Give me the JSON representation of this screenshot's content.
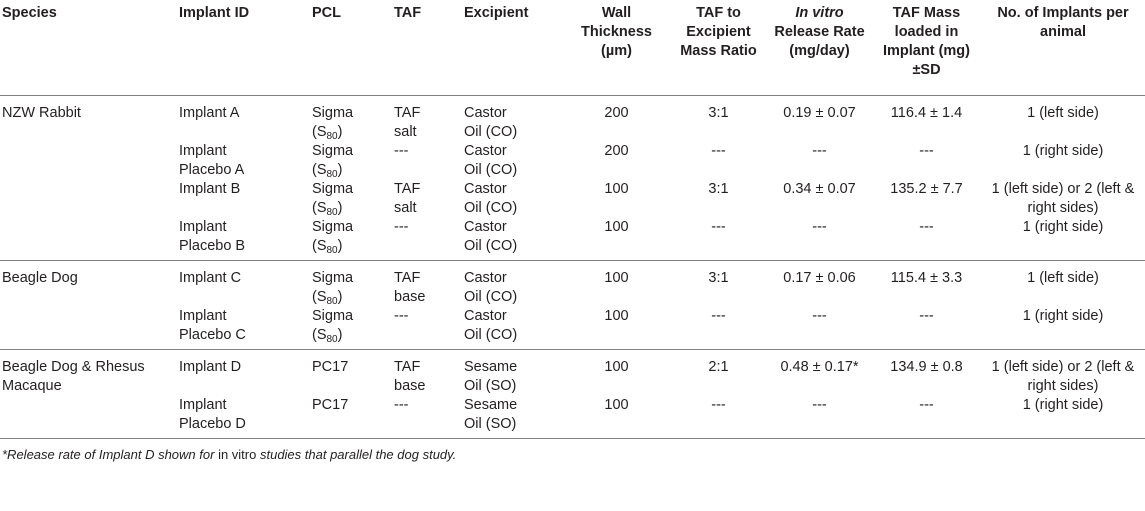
{
  "headers": {
    "species": "Species",
    "implant_id": "Implant ID",
    "pcl": "PCL",
    "taf": "TAF",
    "excipient": "Excipient",
    "wall_thickness": "Wall Thickness (µm)",
    "ratio": "TAF to Excipient Mass Ratio",
    "release_prefix": "In vitro",
    "release_rest": "Release Rate (mg/day)",
    "mass": "TAF Mass loaded in Implant (mg)±SD",
    "num": "No. of Implants per animal"
  },
  "rows": [
    {
      "species": "NZW Rabbit",
      "implant_id": "Implant A",
      "pcl_main": "Sigma (S",
      "pcl_sub": "80",
      "pcl_end": ")",
      "taf": "TAF salt",
      "excipient": "Castor Oil (CO)",
      "wall": "200",
      "ratio": "3:1",
      "release": "0.19 ± 0.07",
      "mass": "116.4 ± 1.4",
      "num": "1 (left side)"
    },
    {
      "species": "",
      "implant_id": "Implant Placebo A",
      "pcl_main": "Sigma (S",
      "pcl_sub": "80",
      "pcl_end": ")",
      "taf": "---",
      "excipient": "Castor Oil (CO)",
      "wall": "200",
      "ratio": "---",
      "release": "---",
      "mass": "---",
      "num": "1 (right side)"
    },
    {
      "species": "",
      "implant_id": "Implant B",
      "pcl_main": "Sigma (S",
      "pcl_sub": "80",
      "pcl_end": ")",
      "taf": "TAF salt",
      "excipient": "Castor Oil (CO)",
      "wall": "100",
      "ratio": "3:1",
      "release": "0.34 ± 0.07",
      "mass": "135.2 ± 7.7",
      "num": "1 (left side) or 2 (left & right sides)"
    },
    {
      "species": "",
      "implant_id": "Implant Placebo B",
      "pcl_main": "Sigma (S",
      "pcl_sub": "80",
      "pcl_end": ")",
      "taf": "---",
      "excipient": "Castor Oil (CO)",
      "wall": "100",
      "ratio": "---",
      "release": "---",
      "mass": "---",
      "num": "1 (right side)"
    },
    {
      "species": "Beagle Dog",
      "implant_id": "Implant C",
      "pcl_main": "Sigma (S",
      "pcl_sub": "80",
      "pcl_end": ")",
      "taf": "TAF base",
      "excipient": "Castor Oil (CO)",
      "wall": "100",
      "ratio": "3:1",
      "release": "0.17 ± 0.06",
      "mass": "115.4 ± 3.3",
      "num": "1 (left side)"
    },
    {
      "species": "",
      "implant_id": "Implant Placebo C",
      "pcl_main": "Sigma (S",
      "pcl_sub": "80",
      "pcl_end": ")",
      "taf": "---",
      "excipient": "Castor Oil (CO)",
      "wall": "100",
      "ratio": "---",
      "release": "---",
      "mass": "---",
      "num": "1 (right side)"
    },
    {
      "species": "Beagle Dog & Rhesus Macaque",
      "implant_id": "Implant D",
      "pcl_main": "PC17",
      "pcl_sub": "",
      "pcl_end": "",
      "taf": "TAF base",
      "excipient": "Sesame Oil (SO)",
      "wall": "100",
      "ratio": "2:1",
      "release": "0.48 ± 0.17*",
      "mass": "134.9 ± 0.8",
      "num": "1 (left side) or 2 (left & right sides)"
    },
    {
      "species": "",
      "implant_id": "Implant Placebo D",
      "pcl_main": "PC17",
      "pcl_sub": "",
      "pcl_end": "",
      "taf": "---",
      "excipient": "Sesame Oil (SO)",
      "wall": "100",
      "ratio": "---",
      "release": "---",
      "mass": "---",
      "num": "1 (right side)"
    }
  ],
  "footnote": {
    "part1": "*Release rate of Implant D shown for ",
    "part2": "in vitro",
    "part3": " studies that parallel the dog study."
  }
}
